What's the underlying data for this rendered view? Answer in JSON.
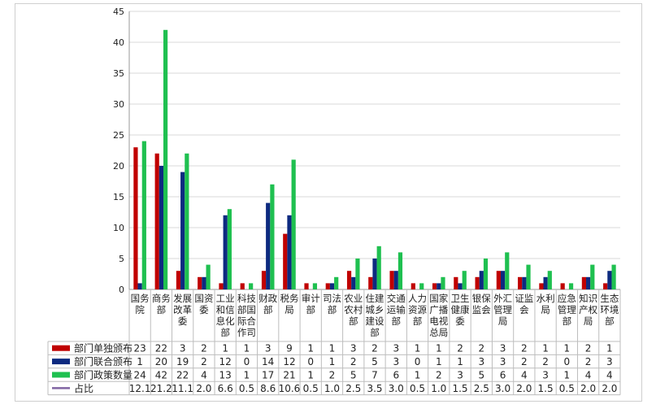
{
  "chart_data": {
    "type": "bar",
    "categories": [
      "国务院",
      "商务部",
      "发展改革委",
      "国资委",
      "工业和信息化部",
      "科技部国际合作司",
      "财政部",
      "税务局",
      "审计部",
      "司法部",
      "农业农村部",
      "住建城乡建设部",
      "交通运输部",
      "人力资源部",
      "国家广播电视总局",
      "卫生健康委",
      "银保监会",
      "外汇管理局",
      "证监会",
      "水利局",
      "应急管理部",
      "知识产权局",
      "生态环境部"
    ],
    "category_lines": [
      [
        "国务",
        "院"
      ],
      [
        "商务",
        "部"
      ],
      [
        "发展",
        "改革",
        "委"
      ],
      [
        "国资",
        "委"
      ],
      [
        "工业",
        "和信",
        "息化",
        "部"
      ],
      [
        "科技",
        "部国",
        "际合",
        "作司"
      ],
      [
        "财政",
        "部"
      ],
      [
        "税务",
        "局"
      ],
      [
        "审计",
        "部"
      ],
      [
        "司法",
        "部"
      ],
      [
        "农业",
        "农村",
        "部"
      ],
      [
        "住建",
        "城乡",
        "建设",
        "部"
      ],
      [
        "交通",
        "运输",
        "部"
      ],
      [
        "人力",
        "资源",
        "部"
      ],
      [
        "国家",
        "广播",
        "电视",
        "总局"
      ],
      [
        "卫生",
        "健康",
        "委"
      ],
      [
        "银保",
        "监会"
      ],
      [
        "外汇",
        "管理",
        "局"
      ],
      [
        "证监",
        "会"
      ],
      [
        "水利",
        "局"
      ],
      [
        "应急",
        "管理",
        "部"
      ],
      [
        "知识",
        "产权",
        "局"
      ],
      [
        "生态",
        "环境",
        "部"
      ]
    ],
    "series": [
      {
        "name": "部门单独颁布",
        "kind": "bar",
        "color": "#c00000",
        "values": [
          23,
          22,
          3,
          2,
          1,
          1,
          3,
          9,
          1,
          1,
          3,
          2,
          3,
          1,
          1,
          2,
          2,
          3,
          2,
          1,
          1,
          2,
          1
        ]
      },
      {
        "name": "部门联合颁布",
        "kind": "bar",
        "color": "#0d2a80",
        "values": [
          1,
          20,
          19,
          2,
          12,
          0,
          14,
          12,
          0,
          1,
          2,
          5,
          3,
          0,
          1,
          1,
          3,
          3,
          2,
          2,
          0,
          2,
          3
        ]
      },
      {
        "name": "部门政策数量",
        "kind": "bar",
        "color": "#1fc050",
        "values": [
          24,
          42,
          22,
          4,
          13,
          1,
          17,
          21,
          1,
          2,
          5,
          7,
          6,
          1,
          2,
          3,
          5,
          6,
          4,
          3,
          1,
          4,
          4
        ]
      },
      {
        "name": "占比",
        "kind": "line",
        "color": "#8064a2",
        "values": [
          "12.1",
          "21.2",
          "11.1",
          "2.0",
          "6.6",
          "0.5",
          "8.6",
          "10.6",
          "0.5",
          "1.0",
          "2.5",
          "3.5",
          "3.0",
          "0.5",
          "1.0",
          "1.5",
          "2.5",
          "3.0",
          "2.0",
          "1.5",
          "0.5",
          "2.0",
          "2.0"
        ]
      }
    ],
    "ylim": [
      0,
      45
    ],
    "yticks": [
      "0",
      "5",
      "10",
      "15",
      "20",
      "25",
      "30",
      "35",
      "40",
      "45"
    ],
    "grid": true,
    "legend": "data-table",
    "title": "",
    "xlabel": "",
    "ylabel": ""
  }
}
